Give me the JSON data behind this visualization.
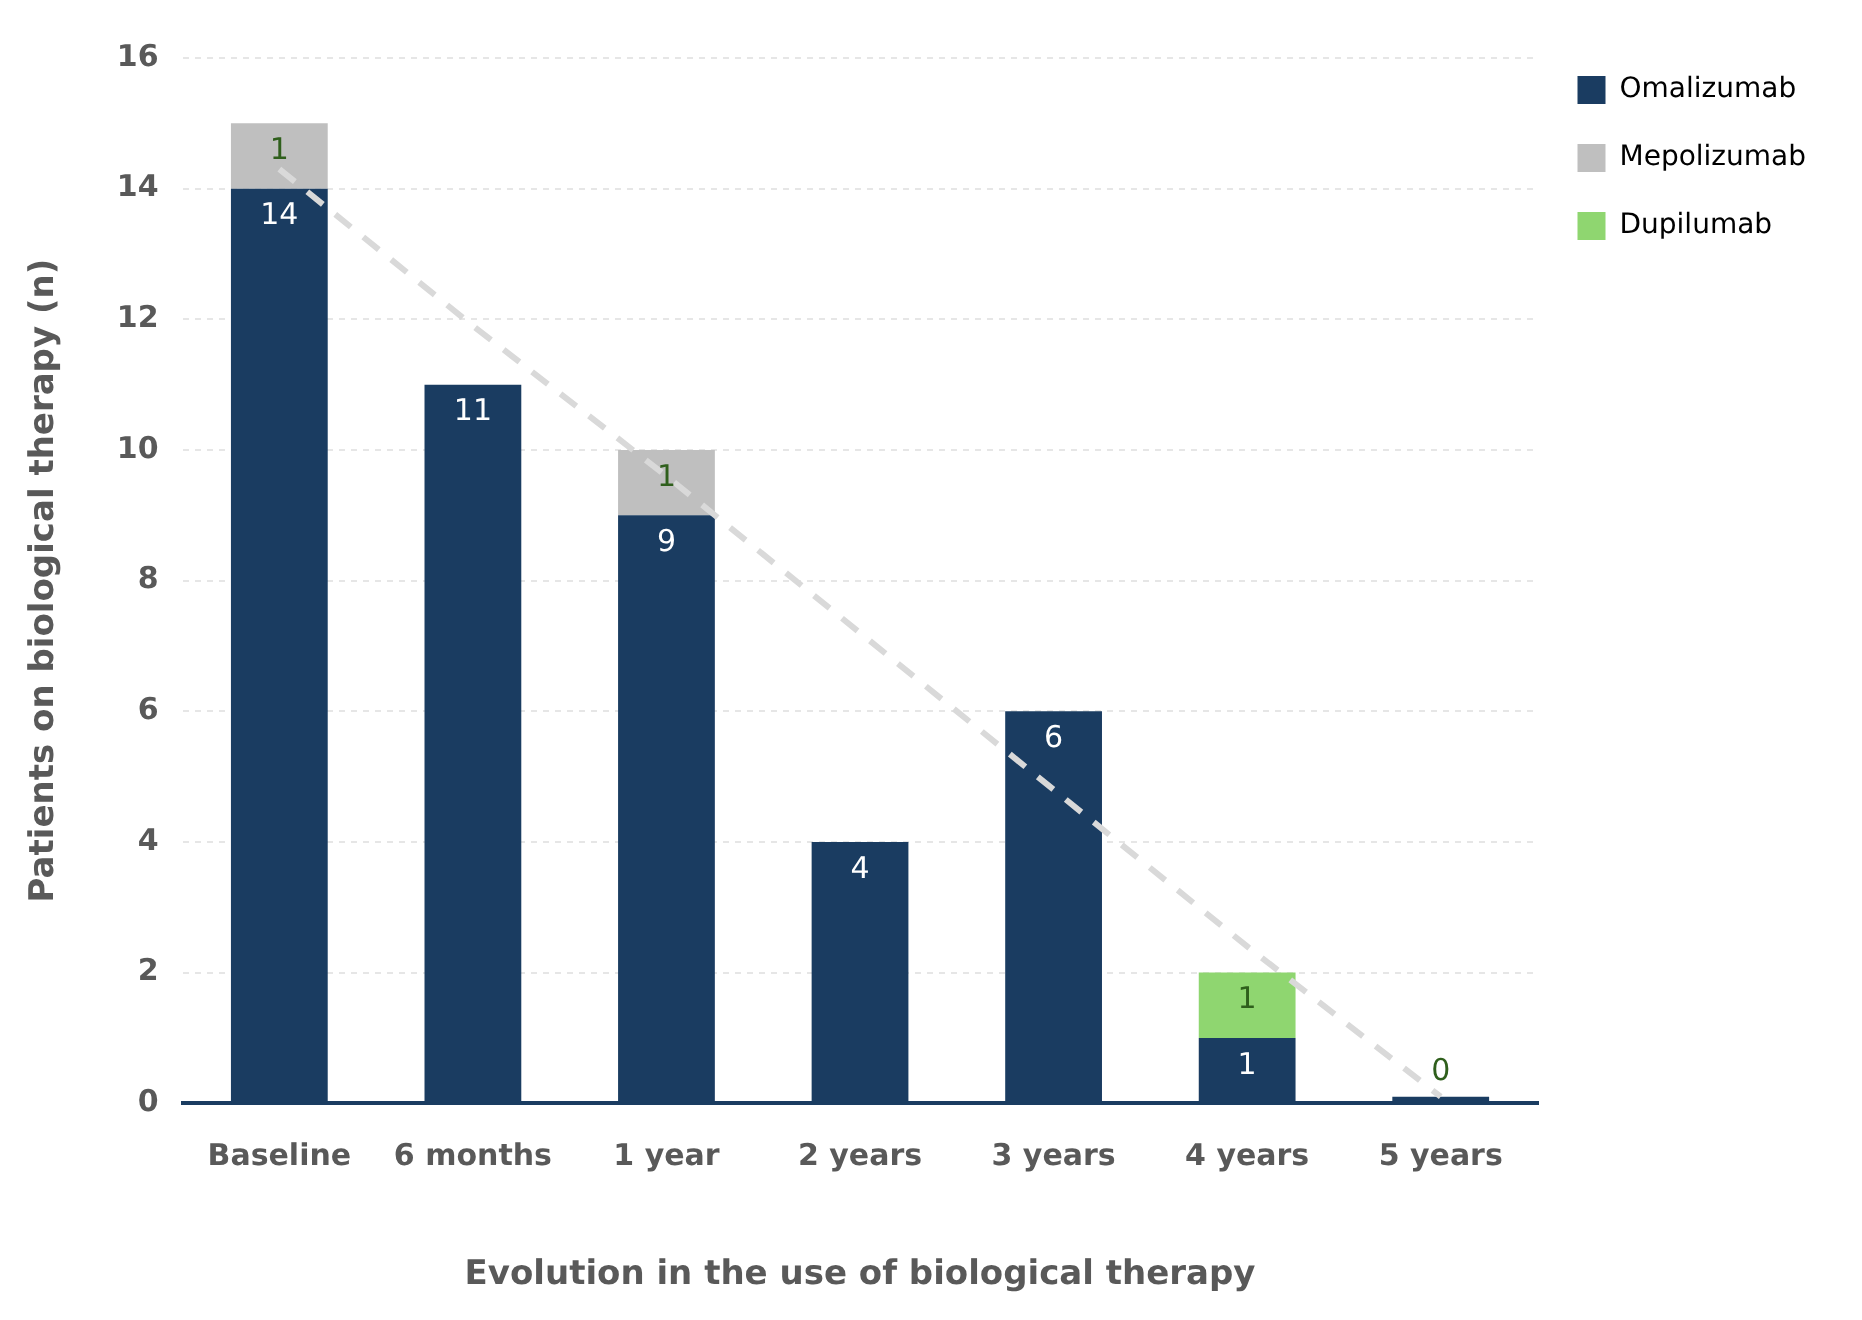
{
  "chart_data": {
    "type": "bar",
    "stacked": true,
    "xlabel": "Evolution in the use of biological therapy",
    "ylabel": "Patients on biological therapy (n)",
    "categories": [
      "Baseline",
      "6 months",
      "1 year",
      "2 years",
      "3 years",
      "4 years",
      "5 years"
    ],
    "series": [
      {
        "name": "Omalizumab",
        "color": "#1a3c61",
        "values": [
          14,
          11,
          9,
          4,
          6,
          1,
          0.1
        ],
        "value_labels": [
          "14",
          "11",
          "9",
          "4",
          "6",
          "1",
          null
        ]
      },
      {
        "name": "Mepolizumab",
        "color": "#bfbfbf",
        "values": [
          1,
          null,
          1,
          null,
          null,
          null,
          null
        ],
        "value_labels": [
          "1",
          null,
          "1",
          null,
          null,
          null,
          null
        ]
      },
      {
        "name": "Dupilumab",
        "color": "#8fd670",
        "values": [
          null,
          null,
          null,
          null,
          null,
          1,
          0
        ],
        "value_labels": [
          null,
          null,
          null,
          null,
          null,
          "1",
          "0"
        ]
      },
      {
        "type": "line",
        "color": "#d9d9d9",
        "line_style": "dashed",
        "marker": "none",
        "values": [
          14.3,
          11.9,
          9.6,
          7.2,
          4.8,
          2.4,
          0.1
        ]
      }
    ],
    "ylim": [
      0,
      16
    ],
    "yticks": [
      0,
      2,
      4,
      6,
      8,
      10,
      12,
      14,
      16
    ],
    "grid": "y",
    "legend": "top right"
  }
}
